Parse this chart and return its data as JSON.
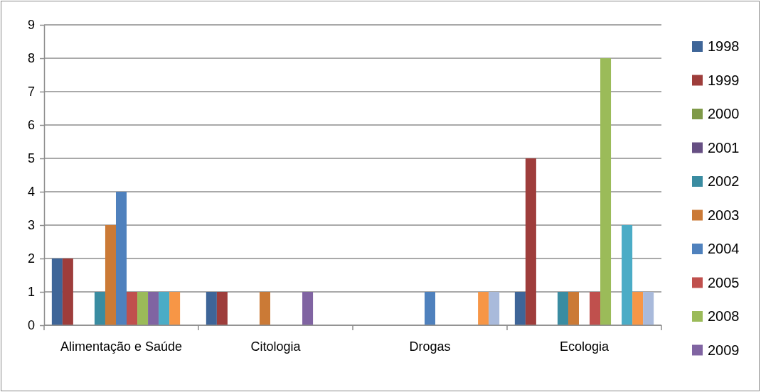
{
  "chart_data": {
    "type": "bar",
    "categories": [
      "Alimentação e Saúde",
      "Citologia",
      "Drogas",
      "Ecologia"
    ],
    "ylim": [
      0,
      9
    ],
    "yticks": [
      0,
      1,
      2,
      3,
      4,
      5,
      6,
      7,
      8,
      9
    ],
    "grid": "y",
    "legend": "right",
    "series": [
      {
        "name": "1998",
        "color": "#3e6598",
        "values": [
          2,
          1,
          0,
          1
        ]
      },
      {
        "name": "1999",
        "color": "#9e3d3b",
        "values": [
          2,
          1,
          0,
          5
        ]
      },
      {
        "name": "2000",
        "color": "#7f9a48",
        "values": [
          0,
          0,
          0,
          0
        ]
      },
      {
        "name": "2001",
        "color": "#664f83",
        "values": [
          0,
          0,
          0,
          0
        ]
      },
      {
        "name": "2002",
        "color": "#3a8ca1",
        "values": [
          1,
          0,
          0,
          1
        ]
      },
      {
        "name": "2003",
        "color": "#cb7a36",
        "values": [
          3,
          1,
          0,
          1
        ]
      },
      {
        "name": "2004",
        "color": "#4f81bd",
        "values": [
          4,
          0,
          1,
          0
        ]
      },
      {
        "name": "2005",
        "color": "#c0504d",
        "values": [
          1,
          0,
          0,
          1
        ]
      },
      {
        "name": "2008",
        "color": "#9bbb59",
        "values": [
          1,
          0,
          0,
          8
        ]
      },
      {
        "name": "2009",
        "color": "#8064a2",
        "values": [
          1,
          1,
          0,
          0
        ]
      },
      {
        "color": "#4bacc6",
        "values": [
          1,
          0,
          0,
          3
        ]
      },
      {
        "color": "#f79646",
        "values": [
          1,
          0,
          1,
          1
        ]
      },
      {
        "color": "#a9badb",
        "values": [
          0,
          0,
          1,
          1
        ]
      }
    ]
  }
}
